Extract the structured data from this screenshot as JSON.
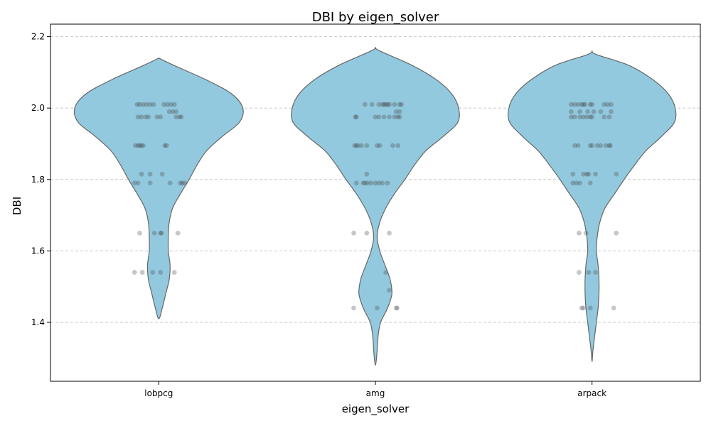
{
  "chart_data": {
    "type": "violin",
    "title": "DBI by eigen_solver",
    "xlabel": "eigen_solver",
    "ylabel": "DBI",
    "categories": [
      "lobpcg",
      "amg",
      "arpack"
    ],
    "ylim": [
      1.235,
      2.235
    ],
    "yticks": [
      1.4,
      1.6,
      1.8,
      2.0,
      2.2
    ],
    "ytick_labels": [
      "1.4",
      "1.6",
      "1.8",
      "2.0",
      "2.2"
    ],
    "grid": "y-dashed",
    "colors": {
      "violin_fill": "#92c9df",
      "violin_edge": "#666666",
      "point": "#444444"
    },
    "violins": [
      {
        "category": "lobpcg",
        "profile": [
          [
            2.14,
            0.0
          ],
          [
            2.12,
            0.17
          ],
          [
            2.08,
            0.54
          ],
          [
            2.04,
            0.84
          ],
          [
            2.0,
            0.97
          ],
          [
            1.96,
            0.93
          ],
          [
            1.92,
            0.73
          ],
          [
            1.88,
            0.55
          ],
          [
            1.84,
            0.44
          ],
          [
            1.8,
            0.35
          ],
          [
            1.76,
            0.25
          ],
          [
            1.72,
            0.16
          ],
          [
            1.68,
            0.12
          ],
          [
            1.64,
            0.11
          ],
          [
            1.6,
            0.11
          ],
          [
            1.56,
            0.13
          ],
          [
            1.52,
            0.12
          ],
          [
            1.48,
            0.08
          ],
          [
            1.44,
            0.04
          ],
          [
            1.41,
            0.0
          ]
        ],
        "points": [
          [
            2.01,
            -0.25
          ],
          [
            2.01,
            -0.22
          ],
          [
            2.01,
            -0.18
          ],
          [
            2.01,
            -0.14
          ],
          [
            2.01,
            -0.1
          ],
          [
            2.01,
            -0.06
          ],
          [
            2.01,
            0.06
          ],
          [
            2.01,
            0.1
          ],
          [
            2.01,
            0.14
          ],
          [
            2.01,
            0.18
          ],
          [
            1.99,
            0.12
          ],
          [
            1.99,
            0.16
          ],
          [
            1.99,
            0.2
          ],
          [
            1.975,
            -0.24
          ],
          [
            1.975,
            -0.2
          ],
          [
            1.975,
            -0.15
          ],
          [
            1.975,
            -0.12
          ],
          [
            1.975,
            -0.02
          ],
          [
            1.975,
            0.02
          ],
          [
            1.975,
            0.2
          ],
          [
            1.975,
            0.24
          ],
          [
            1.975,
            0.26
          ],
          [
            1.895,
            -0.27
          ],
          [
            1.895,
            -0.24
          ],
          [
            1.895,
            -0.22
          ],
          [
            1.895,
            -0.2
          ],
          [
            1.895,
            -0.18
          ],
          [
            1.895,
            0.07
          ],
          [
            1.895,
            0.09
          ],
          [
            1.815,
            -0.2
          ],
          [
            1.815,
            -0.1
          ],
          [
            1.815,
            0.04
          ],
          [
            1.79,
            -0.28
          ],
          [
            1.79,
            -0.24
          ],
          [
            1.79,
            -0.1
          ],
          [
            1.79,
            0.13
          ],
          [
            1.79,
            0.25
          ],
          [
            1.79,
            0.27
          ],
          [
            1.79,
            0.3
          ],
          [
            1.65,
            -0.22
          ],
          [
            1.65,
            -0.05
          ],
          [
            1.65,
            0.02
          ],
          [
            1.65,
            0.03
          ],
          [
            1.65,
            0.22
          ],
          [
            1.54,
            -0.28
          ],
          [
            1.54,
            -0.19
          ],
          [
            1.54,
            -0.07
          ],
          [
            1.54,
            0.02
          ],
          [
            1.54,
            0.18
          ]
        ]
      },
      {
        "category": "amg",
        "profile": [
          [
            2.17,
            0.0
          ],
          [
            2.16,
            0.05
          ],
          [
            2.12,
            0.42
          ],
          [
            2.08,
            0.7
          ],
          [
            2.04,
            0.88
          ],
          [
            2.0,
            0.96
          ],
          [
            1.96,
            0.95
          ],
          [
            1.92,
            0.78
          ],
          [
            1.88,
            0.58
          ],
          [
            1.84,
            0.45
          ],
          [
            1.8,
            0.34
          ],
          [
            1.76,
            0.22
          ],
          [
            1.72,
            0.12
          ],
          [
            1.68,
            0.05
          ],
          [
            1.64,
            0.02
          ],
          [
            1.6,
            0.05
          ],
          [
            1.56,
            0.11
          ],
          [
            1.52,
            0.17
          ],
          [
            1.48,
            0.19
          ],
          [
            1.44,
            0.14
          ],
          [
            1.4,
            0.06
          ],
          [
            1.36,
            0.03
          ],
          [
            1.32,
            0.02
          ],
          [
            1.28,
            0.0
          ]
        ],
        "points": [
          [
            2.01,
            -0.12
          ],
          [
            2.01,
            -0.04
          ],
          [
            2.01,
            0.04
          ],
          [
            2.01,
            0.08
          ],
          [
            2.01,
            0.1
          ],
          [
            2.01,
            0.12
          ],
          [
            2.01,
            0.14
          ],
          [
            2.01,
            0.16
          ],
          [
            2.01,
            0.22
          ],
          [
            2.01,
            0.28
          ],
          [
            2.01,
            0.3
          ],
          [
            1.99,
            0.24
          ],
          [
            1.99,
            0.28
          ],
          [
            1.975,
            -0.23
          ],
          [
            1.975,
            -0.22
          ],
          [
            1.975,
            0.0
          ],
          [
            1.975,
            0.04
          ],
          [
            1.975,
            0.1
          ],
          [
            1.975,
            0.16
          ],
          [
            1.975,
            0.22
          ],
          [
            1.975,
            0.26
          ],
          [
            1.975,
            0.28
          ],
          [
            1.895,
            -0.24
          ],
          [
            1.895,
            -0.22
          ],
          [
            1.895,
            -0.2
          ],
          [
            1.895,
            -0.16
          ],
          [
            1.895,
            -0.1
          ],
          [
            1.895,
            0.02
          ],
          [
            1.895,
            0.05
          ],
          [
            1.895,
            0.2
          ],
          [
            1.895,
            0.26
          ],
          [
            1.815,
            -0.1
          ],
          [
            1.79,
            -0.22
          ],
          [
            1.79,
            -0.14
          ],
          [
            1.79,
            -0.12
          ],
          [
            1.79,
            -0.09
          ],
          [
            1.79,
            -0.05
          ],
          [
            1.79,
            0.0
          ],
          [
            1.79,
            0.04
          ],
          [
            1.79,
            0.08
          ],
          [
            1.79,
            0.14
          ],
          [
            1.65,
            -0.25
          ],
          [
            1.65,
            -0.1
          ],
          [
            1.65,
            0.16
          ],
          [
            1.54,
            0.12
          ],
          [
            1.49,
            0.16
          ],
          [
            1.44,
            -0.25
          ],
          [
            1.44,
            0.02
          ],
          [
            1.44,
            0.24
          ],
          [
            1.44,
            0.25
          ]
        ]
      },
      {
        "category": "arpack",
        "profile": [
          [
            2.16,
            0.0
          ],
          [
            2.15,
            0.05
          ],
          [
            2.12,
            0.42
          ],
          [
            2.08,
            0.7
          ],
          [
            2.04,
            0.88
          ],
          [
            2.0,
            0.96
          ],
          [
            1.96,
            0.95
          ],
          [
            1.92,
            0.8
          ],
          [
            1.88,
            0.62
          ],
          [
            1.84,
            0.49
          ],
          [
            1.8,
            0.37
          ],
          [
            1.76,
            0.26
          ],
          [
            1.72,
            0.15
          ],
          [
            1.68,
            0.09
          ],
          [
            1.64,
            0.06
          ],
          [
            1.6,
            0.05
          ],
          [
            1.56,
            0.07
          ],
          [
            1.52,
            0.08
          ],
          [
            1.48,
            0.08
          ],
          [
            1.44,
            0.07
          ],
          [
            1.4,
            0.05
          ],
          [
            1.36,
            0.03
          ],
          [
            1.32,
            0.01
          ],
          [
            1.29,
            0.0
          ]
        ],
        "points": [
          [
            2.01,
            -0.24
          ],
          [
            2.01,
            -0.2
          ],
          [
            2.01,
            -0.16
          ],
          [
            2.01,
            -0.12
          ],
          [
            2.01,
            -0.1
          ],
          [
            2.01,
            -0.08
          ],
          [
            2.01,
            -0.02
          ],
          [
            2.01,
            0.0
          ],
          [
            2.01,
            0.14
          ],
          [
            2.01,
            0.18
          ],
          [
            2.01,
            0.22
          ],
          [
            1.99,
            -0.24
          ],
          [
            1.99,
            -0.14
          ],
          [
            1.99,
            -0.05
          ],
          [
            1.99,
            0.02
          ],
          [
            1.99,
            0.1
          ],
          [
            1.99,
            0.22
          ],
          [
            1.975,
            -0.24
          ],
          [
            1.975,
            -0.2
          ],
          [
            1.975,
            -0.14
          ],
          [
            1.975,
            -0.1
          ],
          [
            1.975,
            -0.06
          ],
          [
            1.975,
            -0.02
          ],
          [
            1.975,
            0.0
          ],
          [
            1.975,
            0.14
          ],
          [
            1.975,
            0.2
          ],
          [
            1.895,
            -0.2
          ],
          [
            1.895,
            -0.16
          ],
          [
            1.895,
            -0.02
          ],
          [
            1.895,
            0.0
          ],
          [
            1.895,
            0.06
          ],
          [
            1.895,
            0.1
          ],
          [
            1.895,
            0.16
          ],
          [
            1.895,
            0.2
          ],
          [
            1.895,
            0.21
          ],
          [
            1.815,
            -0.22
          ],
          [
            1.815,
            -0.1
          ],
          [
            1.815,
            -0.06
          ],
          [
            1.815,
            -0.04
          ],
          [
            1.815,
            0.04
          ],
          [
            1.815,
            0.28
          ],
          [
            1.79,
            -0.22
          ],
          [
            1.79,
            -0.18
          ],
          [
            1.79,
            -0.14
          ],
          [
            1.79,
            -0.02
          ],
          [
            1.65,
            -0.15
          ],
          [
            1.65,
            -0.07
          ],
          [
            1.65,
            0.28
          ],
          [
            1.54,
            -0.15
          ],
          [
            1.54,
            -0.04
          ],
          [
            1.54,
            0.04
          ],
          [
            1.44,
            -0.12
          ],
          [
            1.44,
            -0.1
          ],
          [
            1.44,
            -0.02
          ],
          [
            1.44,
            0.25
          ]
        ]
      }
    ]
  }
}
